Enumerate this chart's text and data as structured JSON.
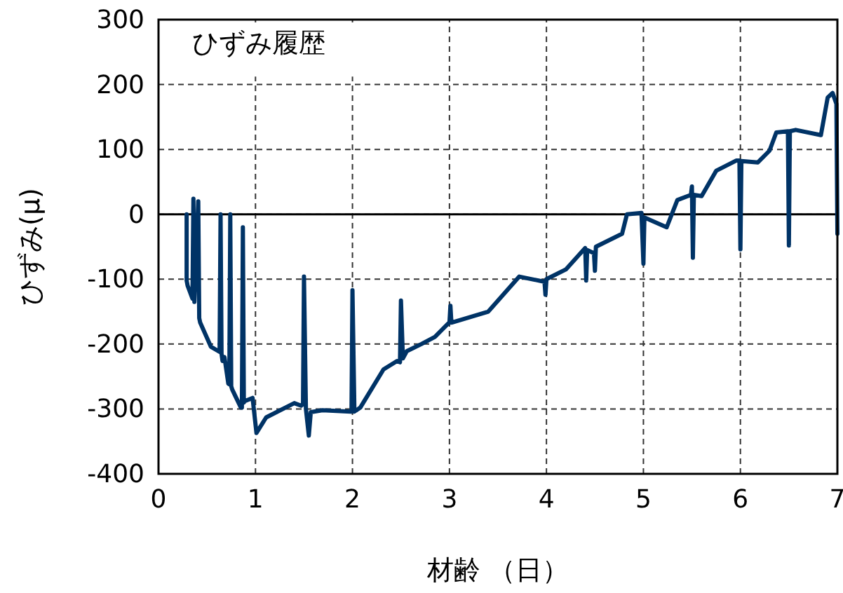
{
  "chart_data": {
    "type": "line",
    "title": "ひずみ履歴",
    "xlabel": "材齢 （日）",
    "ylabel": "ひずみ(μ)",
    "xlim": [
      0,
      7
    ],
    "xticks": [
      0,
      1,
      2,
      3,
      4,
      5,
      6,
      7
    ],
    "ylim": [
      -400,
      300
    ],
    "yticks": [
      -400,
      -300,
      -200,
      -100,
      0,
      100,
      200,
      300
    ],
    "grid": true,
    "line_style": "solid",
    "ref_lines": [
      {
        "axis": "y",
        "value": 0,
        "color": "#000000",
        "line_style": "solid"
      }
    ],
    "series": [
      {
        "color": "#003366",
        "x": [
          0.29,
          0.29,
          0.3,
          0.35,
          0.36,
          0.37,
          0.41,
          0.42,
          0.43,
          0.54,
          0.63,
          0.64,
          0.65,
          0.66,
          0.68,
          0.72,
          0.73,
          0.74,
          0.75,
          0.76,
          0.85,
          0.86,
          0.87,
          0.88,
          0.89,
          0.97,
          1.01,
          1.11,
          1.4,
          1.47,
          1.49,
          1.5,
          1.52,
          1.55,
          1.57,
          1.69,
          1.98,
          1.99,
          2.0,
          2.02,
          2.08,
          2.32,
          2.46,
          2.49,
          2.5,
          2.52,
          2.56,
          2.71,
          2.85,
          2.99,
          3.0,
          3.01,
          3.02,
          3.4,
          3.72,
          3.98,
          3.99,
          4.0,
          4.2,
          4.4,
          4.41,
          4.42,
          4.49,
          4.5,
          4.51,
          4.78,
          4.83,
          4.98,
          5.0,
          5.01,
          5.24,
          5.35,
          5.49,
          5.5,
          5.51,
          5.52,
          5.6,
          5.75,
          5.96,
          5.99,
          6.0,
          6.01,
          6.18,
          6.3,
          6.37,
          6.49,
          6.5,
          6.51,
          6.57,
          6.83,
          6.9,
          6.95,
          6.99,
          7.0
        ],
        "values": [
          0,
          -102,
          -110,
          -130,
          24,
          -135,
          20,
          -160,
          -167,
          -204,
          -212,
          0,
          -215,
          -226,
          -220,
          -261,
          -262,
          0,
          -265,
          -270,
          -298,
          -298,
          -20,
          -290,
          -288,
          -283,
          -337,
          -313,
          -291,
          -295,
          -292,
          -96,
          -300,
          -341,
          -305,
          -302,
          -304,
          -304,
          -117,
          -304,
          -298,
          -239,
          -226,
          -228,
          -133,
          -222,
          -211,
          -200,
          -189,
          -168,
          -167,
          -141,
          -167,
          -150,
          -96,
          -104,
          -124,
          -100,
          -85,
          -52,
          -102,
          -55,
          -60,
          -87,
          -50,
          -30,
          0,
          2,
          -76,
          -5,
          -20,
          22,
          30,
          43,
          -67,
          30,
          28,
          67,
          83,
          83,
          -54,
          82,
          80,
          98,
          126,
          128,
          -48,
          128,
          130,
          122,
          180,
          187,
          170,
          -30
        ]
      }
    ]
  }
}
